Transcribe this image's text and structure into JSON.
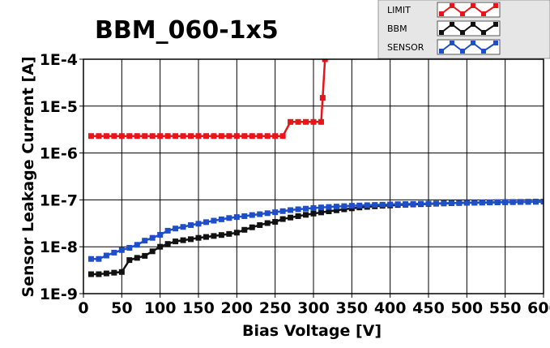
{
  "chart_data": {
    "type": "line",
    "title": "BBM_060-1x5",
    "xlabel": "Bias Voltage [V]",
    "ylabel": "Sensor Leakage Current [A]",
    "x_scale": "linear",
    "y_scale": "log",
    "xlim": [
      0,
      600
    ],
    "ylim": [
      1e-09,
      0.0001
    ],
    "grid": true,
    "legend_position": "top-right",
    "x_ticks": [
      0,
      50,
      100,
      150,
      200,
      250,
      300,
      350,
      400,
      450,
      500,
      550,
      600
    ],
    "x_tick_labels": [
      "0",
      "50",
      "100",
      "150",
      "200",
      "250",
      "300",
      "350",
      "400",
      "450",
      "500",
      "550",
      "600"
    ],
    "y_ticks": [
      1e-09,
      1e-08,
      1e-07,
      1e-06,
      1e-05,
      0.0001
    ],
    "y_tick_labels": [
      "1E-9",
      "1E-8",
      "1E-7",
      "1E-6",
      "1E-5",
      "1E-4"
    ],
    "series": [
      {
        "name": "LIMIT",
        "color": "#e8141a",
        "x": [
          10,
          20,
          30,
          40,
          50,
          60,
          70,
          80,
          90,
          100,
          110,
          120,
          130,
          140,
          150,
          160,
          170,
          180,
          190,
          200,
          210,
          220,
          230,
          240,
          250,
          260,
          270,
          280,
          290,
          300,
          310,
          312,
          315
        ],
        "y": [
          2.3e-06,
          2.3e-06,
          2.3e-06,
          2.3e-06,
          2.3e-06,
          2.3e-06,
          2.3e-06,
          2.3e-06,
          2.3e-06,
          2.3e-06,
          2.3e-06,
          2.3e-06,
          2.3e-06,
          2.3e-06,
          2.3e-06,
          2.3e-06,
          2.3e-06,
          2.3e-06,
          2.3e-06,
          2.3e-06,
          2.3e-06,
          2.3e-06,
          2.3e-06,
          2.3e-06,
          2.3e-06,
          2.3e-06,
          4.6e-06,
          4.6e-06,
          4.6e-06,
          4.6e-06,
          4.6e-06,
          1.5e-05,
          0.0001
        ]
      },
      {
        "name": "BBM",
        "color": "#111111",
        "x": [
          10,
          20,
          30,
          40,
          50,
          60,
          70,
          80,
          90,
          100,
          110,
          120,
          130,
          140,
          150,
          160,
          170,
          180,
          190,
          200,
          210,
          220,
          230,
          240,
          250,
          260,
          270,
          280,
          290,
          300,
          310,
          320,
          330,
          340,
          350,
          360,
          370,
          380,
          390,
          400,
          410,
          420,
          430,
          440,
          450,
          460,
          470,
          480,
          490,
          500,
          510,
          520,
          530,
          540,
          550,
          560,
          570,
          580,
          590,
          600
        ],
        "y": [
          2.6e-09,
          2.6e-09,
          2.7e-09,
          2.8e-09,
          2.9e-09,
          5.2e-09,
          5.8e-09,
          6.4e-09,
          8e-09,
          1e-08,
          1.15e-08,
          1.3e-08,
          1.38e-08,
          1.45e-08,
          1.55e-08,
          1.62e-08,
          1.7e-08,
          1.78e-08,
          1.88e-08,
          2e-08,
          2.3e-08,
          2.6e-08,
          2.9e-08,
          3.2e-08,
          3.4e-08,
          3.9e-08,
          4.2e-08,
          4.5e-08,
          4.8e-08,
          5.1e-08,
          5.4e-08,
          5.7e-08,
          6e-08,
          6.3e-08,
          6.6e-08,
          6.9e-08,
          7.1e-08,
          7.3e-08,
          7.5e-08,
          7.6e-08,
          7.8e-08,
          7.9e-08,
          8e-08,
          8.1e-08,
          8.2e-08,
          8.3e-08,
          8.4e-08,
          8.5e-08,
          8.6e-08,
          8.7e-08,
          8.75e-08,
          8.8e-08,
          8.85e-08,
          8.9e-08,
          8.95e-08,
          9e-08,
          9.05e-08,
          9.1e-08,
          9.15e-08,
          9.2e-08
        ]
      },
      {
        "name": "SENSOR",
        "color": "#1f4fc8",
        "x": [
          10,
          20,
          30,
          40,
          50,
          60,
          70,
          80,
          90,
          100,
          110,
          120,
          130,
          140,
          150,
          160,
          170,
          180,
          190,
          200,
          210,
          220,
          230,
          240,
          250,
          260,
          270,
          280,
          290,
          300,
          310,
          320,
          330,
          340,
          350,
          360,
          370,
          380,
          390,
          400,
          410,
          420,
          430,
          440,
          450,
          460,
          470,
          480,
          490,
          500,
          510,
          520,
          530,
          540,
          550,
          560,
          570,
          580,
          590,
          600
        ],
        "y": [
          5.5e-09,
          5.5e-09,
          6.5e-09,
          7.5e-09,
          8.5e-09,
          9.5e-09,
          1.1e-08,
          1.35e-08,
          1.55e-08,
          1.8e-08,
          2.2e-08,
          2.45e-08,
          2.65e-08,
          2.9e-08,
          3.1e-08,
          3.35e-08,
          3.6e-08,
          3.85e-08,
          4.1e-08,
          4.3e-08,
          4.5e-08,
          4.75e-08,
          4.95e-08,
          5.2e-08,
          5.45e-08,
          5.75e-08,
          6.05e-08,
          6.3e-08,
          6.5e-08,
          6.7e-08,
          6.9e-08,
          7.05e-08,
          7.2e-08,
          7.35e-08,
          7.5e-08,
          7.6e-08,
          7.7e-08,
          7.8e-08,
          7.9e-08,
          8e-08,
          8.1e-08,
          8.15e-08,
          8.2e-08,
          8.3e-08,
          8.35e-08,
          8.4e-08,
          8.5e-08,
          8.55e-08,
          8.6e-08,
          8.65e-08,
          8.7e-08,
          8.75e-08,
          8.8e-08,
          8.85e-08,
          8.9e-08,
          8.95e-08,
          9e-08,
          9.05e-08,
          9.1e-08,
          9.15e-08
        ]
      }
    ]
  }
}
